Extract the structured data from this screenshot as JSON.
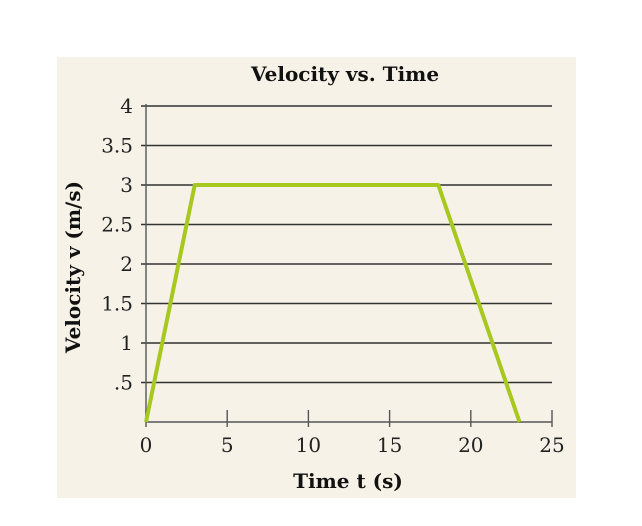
{
  "chart_data": {
    "type": "line",
    "title": "Velocity vs. Time",
    "xlabel": "Time t (s)",
    "ylabel": "Velocity v (m/s)",
    "xlim": [
      0,
      25
    ],
    "ylim": [
      0,
      4
    ],
    "x_ticks": [
      0,
      5,
      10,
      15,
      20,
      25
    ],
    "x_tick_labels": [
      "0",
      "5",
      "10",
      "15",
      "20",
      "25"
    ],
    "y_ticks": [
      0.5,
      1,
      1.5,
      2,
      2.5,
      3,
      3.5,
      4
    ],
    "y_tick_labels": [
      ".5",
      "1",
      "1.5",
      "2",
      "2.5",
      "3",
      "3.5",
      "4"
    ],
    "grid": "horizontal",
    "series": [
      {
        "x": [
          0,
          3,
          18,
          23
        ],
        "y": [
          0,
          3,
          3,
          0
        ]
      }
    ],
    "colors": {
      "line": "#a6c81f",
      "grid": "#333333",
      "panel": "#f6f2e8"
    }
  }
}
